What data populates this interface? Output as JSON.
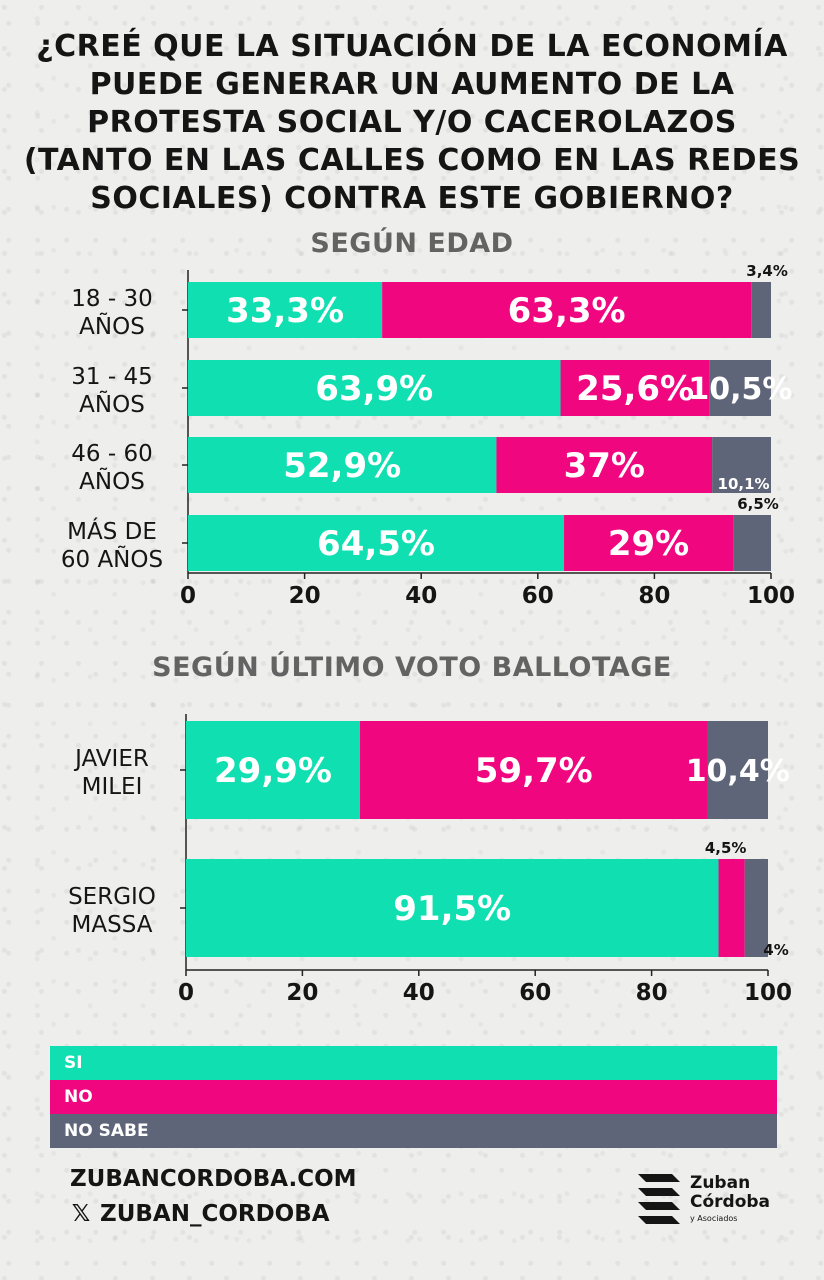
{
  "title": "¿CREÉ QUE LA SITUACIÓN DE LA ECONOMÍA PUEDE GENERAR UN AUMENTO DE LA PROTESTA SOCIAL Y/O CACEROLAZOS (TANTO EN LAS CALLES COMO EN LAS REDES SOCIALES) CONTRA ESTE GOBIERNO?",
  "colors": {
    "si": "#10dfb1",
    "no": "#f0067f",
    "no_sabe": "#5f6578",
    "text_dark": "#151515"
  },
  "legend": [
    {
      "label": "SI",
      "color": "#10dfb1"
    },
    {
      "label": "NO",
      "color": "#f0067f"
    },
    {
      "label": "NO SABE",
      "color": "#5f6578"
    }
  ],
  "chart_data": [
    {
      "type": "bar",
      "orientation": "horizontal",
      "stacked": true,
      "title": "SEGÚN EDAD",
      "categories": [
        "18 - 30 AÑOS",
        "31 - 45 AÑOS",
        "46 - 60 AÑOS",
        "MÁS DE 60 AÑOS"
      ],
      "category_lines": [
        [
          "18 - 30",
          "AÑOS"
        ],
        [
          "31 - 45",
          "AÑOS"
        ],
        [
          "46 - 60",
          "AÑOS"
        ],
        [
          "MÁS DE",
          "60 AÑOS"
        ]
      ],
      "series": [
        {
          "key": "si",
          "values": [
            33.3,
            63.9,
            52.9,
            64.5
          ],
          "labels": [
            "33,3%",
            "63,9%",
            "52,9%",
            "64,5%"
          ]
        },
        {
          "key": "no",
          "values": [
            63.3,
            25.6,
            37,
            29
          ],
          "labels": [
            "63,3%",
            "25,6%",
            "37%",
            "29%"
          ]
        },
        {
          "key": "no_sabe",
          "values": [
            3.4,
            10.5,
            10.1,
            6.5
          ],
          "labels": [
            "3,4%",
            "10,5%",
            "10,1%",
            "6,5%"
          ]
        }
      ],
      "xlim": [
        0,
        100
      ],
      "xticks": [
        "0",
        "20",
        "40",
        "60",
        "80",
        "100"
      ],
      "grid": false
    },
    {
      "type": "bar",
      "orientation": "horizontal",
      "stacked": true,
      "title": "SEGÚN ÚLTIMO VOTO BALLOTAGE",
      "categories": [
        "JAVIER MILEI",
        "SERGIO MASSA"
      ],
      "category_lines": [
        [
          "JAVIER",
          "MILEI"
        ],
        [
          "SERGIO",
          "MASSA"
        ]
      ],
      "series": [
        {
          "key": "si",
          "values": [
            29.9,
            91.5
          ],
          "labels": [
            "29,9%",
            "91,5%"
          ]
        },
        {
          "key": "no",
          "values": [
            59.7,
            4.5
          ],
          "labels": [
            "59,7%",
            "4,5%"
          ]
        },
        {
          "key": "no_sabe",
          "values": [
            10.4,
            4
          ],
          "labels": [
            "10,4%",
            "4%"
          ]
        }
      ],
      "xlim": [
        0,
        100
      ],
      "xticks": [
        "0",
        "20",
        "40",
        "60",
        "80",
        "100"
      ],
      "grid": false
    }
  ],
  "footer": {
    "website": "ZUBANCORDOBA.COM",
    "x_handle": "ZUBAN_CORDOBA",
    "x_icon": "x-logo-icon",
    "logo_lines": [
      "Zuban",
      "Córdoba"
    ],
    "logo_sub": "y Asociados"
  }
}
